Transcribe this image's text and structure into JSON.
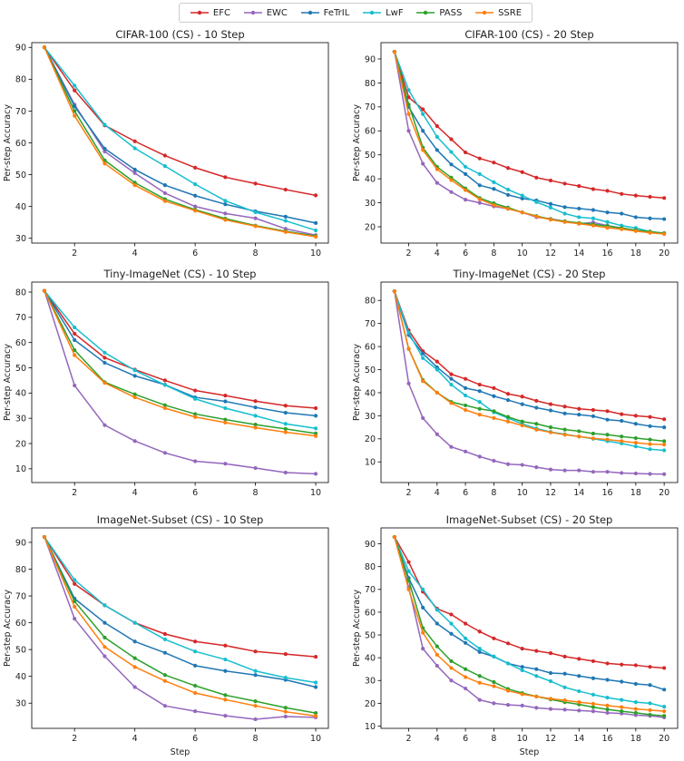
{
  "legend": {
    "items": [
      {
        "name": "EFC",
        "color": "#d62728"
      },
      {
        "name": "EWC",
        "color": "#9467bd"
      },
      {
        "name": "FeTrIL",
        "color": "#1f77b4"
      },
      {
        "name": "LwF",
        "color": "#17becf"
      },
      {
        "name": "PASS",
        "color": "#2ca02c"
      },
      {
        "name": "SSRE",
        "color": "#ff7f0e"
      }
    ]
  },
  "chart_data": [
    {
      "type": "line",
      "title": "CIFAR-100 (CS) - 10 Step",
      "xlabel": "",
      "ylabel": "Per-step Accuracy",
      "xlim": [
        0.58,
        10.42
      ],
      "ylim": [
        28.5,
        91.5
      ],
      "xticks": [
        2,
        4,
        6,
        8,
        10
      ],
      "yticks": [
        30,
        40,
        50,
        60,
        70,
        80,
        90
      ],
      "x": [
        1,
        2,
        3,
        4,
        5,
        6,
        7,
        8,
        9,
        10
      ],
      "series": [
        {
          "name": "EFC",
          "values": [
            90,
            76.5,
            65.5,
            60.5,
            56,
            52.2,
            49.2,
            47.2,
            45.3,
            43.5
          ]
        },
        {
          "name": "EWC",
          "values": [
            90,
            72,
            57.3,
            50.5,
            44.2,
            40,
            37.8,
            36.3,
            33,
            31
          ]
        },
        {
          "name": "FeTrIL",
          "values": [
            90,
            71.5,
            58.2,
            51.6,
            46.7,
            43.4,
            40.7,
            38.5,
            36.8,
            34.8
          ]
        },
        {
          "name": "LwF",
          "values": [
            90,
            78,
            65.7,
            58.3,
            52.7,
            47,
            41.8,
            38.2,
            35.5,
            32.5
          ]
        },
        {
          "name": "PASS",
          "values": [
            90,
            70,
            54.5,
            47.5,
            42.3,
            39,
            36.2,
            34,
            32.2,
            30.7
          ]
        },
        {
          "name": "SSRE",
          "values": [
            90,
            68.5,
            53.5,
            46.7,
            41.7,
            38.7,
            35.8,
            33.8,
            32,
            30.5
          ]
        }
      ]
    },
    {
      "type": "line",
      "title": "CIFAR-100 (CS) - 20 Step",
      "xlabel": "",
      "ylabel": "Per-step Accuracy",
      "xlim": [
        0.05,
        20.95
      ],
      "ylim": [
        13.2,
        96.8
      ],
      "xticks": [
        2,
        4,
        6,
        8,
        10,
        12,
        14,
        16,
        18,
        20
      ],
      "yticks": [
        20,
        30,
        40,
        50,
        60,
        70,
        80,
        90
      ],
      "x": [
        1,
        2,
        3,
        4,
        5,
        6,
        7,
        8,
        9,
        10,
        11,
        12,
        13,
        14,
        15,
        16,
        17,
        18,
        19,
        20
      ],
      "series": [
        {
          "name": "EFC",
          "values": [
            93,
            74,
            69,
            62,
            56.5,
            51,
            48.5,
            46.8,
            44.5,
            42.8,
            40.5,
            39.3,
            38,
            37,
            35.7,
            35,
            33.7,
            33,
            32.5,
            32
          ]
        },
        {
          "name": "EWC",
          "values": [
            93,
            60,
            46.3,
            38.3,
            34.5,
            31.3,
            30,
            28.5,
            27.5,
            26,
            24,
            23.3,
            22.3,
            21.3,
            21.8,
            20.5,
            19.5,
            18.5,
            17.8,
            17.3
          ]
        },
        {
          "name": "FeTrIL",
          "values": [
            93,
            70,
            60,
            52,
            46,
            42,
            37.3,
            35.8,
            33.3,
            31.8,
            31,
            29.5,
            28.2,
            27.6,
            27,
            26,
            25.5,
            24,
            23.5,
            23.2
          ]
        },
        {
          "name": "LwF",
          "values": [
            93,
            77,
            67,
            57.5,
            51.2,
            45,
            42,
            38.6,
            35.5,
            33,
            30.3,
            28,
            25.5,
            24,
            23.5,
            22,
            20.5,
            19.5,
            18,
            17.3
          ]
        },
        {
          "name": "PASS",
          "values": [
            93,
            71,
            53,
            45,
            40.5,
            36,
            32,
            29.8,
            28,
            26,
            24.5,
            23.2,
            22.3,
            21.6,
            21,
            20.3,
            19.5,
            18.6,
            18,
            17.3
          ]
        },
        {
          "name": "SSRE",
          "values": [
            93,
            67,
            52,
            44,
            39.5,
            35.3,
            31.5,
            29,
            27.5,
            26,
            24.3,
            23,
            22,
            21.3,
            20.5,
            19.6,
            19,
            18.2,
            17.5,
            17
          ]
        }
      ]
    },
    {
      "type": "line",
      "title": "Tiny-ImageNet (CS) - 10 Step",
      "xlabel": "",
      "ylabel": "Per-step Accuracy",
      "xlim": [
        0.58,
        10.42
      ],
      "ylim": [
        4.55,
        83.95
      ],
      "xticks": [
        2,
        4,
        6,
        8,
        10
      ],
      "yticks": [
        10,
        20,
        30,
        40,
        50,
        60,
        70,
        80
      ],
      "x": [
        1,
        2,
        3,
        4,
        5,
        6,
        7,
        8,
        9,
        10
      ],
      "series": [
        {
          "name": "EFC",
          "values": [
            80.5,
            63.5,
            54,
            49.3,
            45,
            41,
            39,
            36.8,
            35,
            34
          ]
        },
        {
          "name": "EWC",
          "values": [
            80.5,
            43,
            27.3,
            21,
            16.3,
            13,
            12,
            10.3,
            8.5,
            8
          ]
        },
        {
          "name": "FeTrIL",
          "values": [
            80.5,
            61,
            52,
            46.8,
            43.3,
            38.3,
            36.7,
            34.3,
            32.2,
            31
          ]
        },
        {
          "name": "LwF",
          "values": [
            80.5,
            66,
            56,
            49,
            43.2,
            37.7,
            34,
            31,
            27.8,
            26
          ]
        },
        {
          "name": "PASS",
          "values": [
            80.5,
            57,
            44.3,
            39.5,
            35.2,
            31.7,
            29.5,
            27.5,
            25.8,
            24
          ]
        },
        {
          "name": "SSRE",
          "values": [
            80.5,
            55,
            44,
            38.3,
            34,
            30.5,
            28.3,
            26.3,
            24.5,
            23
          ]
        }
      ]
    },
    {
      "type": "line",
      "title": "Tiny-ImageNet (CS) - 20 Step",
      "xlabel": "",
      "ylabel": "Per-step Accuracy",
      "xlim": [
        0.05,
        20.95
      ],
      "ylim": [
        1.05,
        87.95
      ],
      "xticks": [
        2,
        4,
        6,
        8,
        10,
        12,
        14,
        16,
        18,
        20
      ],
      "yticks": [
        10,
        20,
        30,
        40,
        50,
        60,
        70,
        80
      ],
      "x": [
        1,
        2,
        3,
        4,
        5,
        6,
        7,
        8,
        9,
        10,
        11,
        12,
        13,
        14,
        15,
        16,
        17,
        18,
        19,
        20
      ],
      "series": [
        {
          "name": "EFC",
          "values": [
            84,
            67,
            58,
            53.5,
            48,
            46,
            43.5,
            42,
            39.5,
            38.3,
            36.5,
            35,
            34,
            33,
            32.5,
            32,
            30.7,
            30,
            29.5,
            28.5
          ]
        },
        {
          "name": "EWC",
          "values": [
            84,
            44,
            29,
            22,
            16.5,
            14.5,
            12.3,
            10.5,
            9,
            8.7,
            7.7,
            6.7,
            6.3,
            6.3,
            5.7,
            5.7,
            5.2,
            5,
            4.8,
            4.7
          ]
        },
        {
          "name": "FeTrIL",
          "values": [
            84,
            65,
            57,
            51,
            46,
            42,
            40.7,
            38.5,
            36.8,
            35,
            33.5,
            32.3,
            31,
            30.5,
            29.8,
            28.3,
            27.8,
            26.5,
            25.5,
            25
          ]
        },
        {
          "name": "LwF",
          "values": [
            84,
            66,
            55,
            50,
            43.5,
            38.8,
            36,
            31.5,
            29,
            26.5,
            24.5,
            23,
            22,
            21,
            20,
            19,
            18,
            16.7,
            15.5,
            15
          ]
        },
        {
          "name": "PASS",
          "values": [
            84,
            59,
            45.5,
            40,
            36,
            34.5,
            33,
            32,
            29.5,
            27.5,
            26.5,
            25,
            24,
            23.3,
            22.3,
            21.8,
            21,
            20.3,
            19.7,
            19
          ]
        },
        {
          "name": "SSRE",
          "values": [
            84,
            59,
            45,
            40,
            35.5,
            32.5,
            30.5,
            29,
            27.5,
            25.8,
            24,
            22.8,
            21.8,
            21,
            20.2,
            19.7,
            19,
            18.3,
            17.7,
            17.5
          ]
        }
      ]
    },
    {
      "type": "line",
      "title": "ImageNet-Subset (CS) - 10 Step",
      "xlabel": "Step",
      "ylabel": "Per-step Accuracy",
      "xlim": [
        0.58,
        10.42
      ],
      "ylim": [
        20.6,
        95.4
      ],
      "xticks": [
        2,
        4,
        6,
        8,
        10
      ],
      "yticks": [
        30,
        40,
        50,
        60,
        70,
        80,
        90
      ],
      "x": [
        1,
        2,
        3,
        4,
        5,
        6,
        7,
        8,
        9,
        10
      ],
      "series": [
        {
          "name": "EFC",
          "values": [
            92,
            74.5,
            66.5,
            60,
            55.8,
            53,
            51.5,
            49.3,
            48.3,
            47.3
          ]
        },
        {
          "name": "EWC",
          "values": [
            92,
            61.5,
            47.5,
            36,
            29,
            27,
            25.3,
            24,
            25,
            24.7
          ]
        },
        {
          "name": "FeTrIL",
          "values": [
            92,
            69,
            60,
            53,
            48.8,
            44,
            42,
            40.5,
            38.7,
            36
          ]
        },
        {
          "name": "LwF",
          "values": [
            92,
            76,
            66.5,
            60,
            53.8,
            49.3,
            46.3,
            42,
            39.5,
            37.7
          ]
        },
        {
          "name": "PASS",
          "values": [
            92,
            68,
            54.5,
            46.8,
            40.5,
            36.5,
            33,
            30.7,
            28.3,
            26.3
          ]
        },
        {
          "name": "SSRE",
          "values": [
            92,
            66,
            51,
            43.5,
            38.3,
            33.8,
            31.3,
            29,
            26.8,
            25.2
          ]
        }
      ]
    },
    {
      "type": "line",
      "title": "ImageNet-Subset (CS) - 20 Step",
      "xlabel": "Step",
      "ylabel": "Per-step Accuracy",
      "xlim": [
        0.05,
        20.95
      ],
      "ylim": [
        9.0,
        97.0
      ],
      "xticks": [
        2,
        4,
        6,
        8,
        10,
        12,
        14,
        16,
        18,
        20
      ],
      "yticks": [
        10,
        20,
        30,
        40,
        50,
        60,
        70,
        80,
        90
      ],
      "x": [
        1,
        2,
        3,
        4,
        5,
        6,
        7,
        8,
        9,
        10,
        11,
        12,
        13,
        14,
        15,
        16,
        17,
        18,
        19,
        20
      ],
      "series": [
        {
          "name": "EFC",
          "values": [
            93,
            82,
            69,
            61.5,
            59,
            55,
            51.5,
            48.5,
            46.3,
            44,
            43,
            42,
            40.5,
            39.5,
            38.5,
            37.5,
            37,
            36.7,
            36,
            35.5
          ]
        },
        {
          "name": "EWC",
          "values": [
            93,
            71,
            44,
            36.5,
            30,
            26.5,
            21.5,
            20,
            19.3,
            19,
            18,
            17.5,
            17.2,
            16.8,
            16.5,
            15.8,
            15.5,
            14.8,
            14.5,
            13.8
          ]
        },
        {
          "name": "FeTrIL",
          "values": [
            93,
            75,
            62,
            55,
            50.5,
            46.5,
            42.5,
            40.5,
            37.5,
            36,
            35,
            33.3,
            33,
            32,
            31,
            30.3,
            29.5,
            28.5,
            28,
            26
          ]
        },
        {
          "name": "LwF",
          "values": [
            93,
            78,
            70,
            61,
            55,
            48.5,
            44,
            40.5,
            37.5,
            34.5,
            32,
            29.7,
            27,
            25.3,
            23.8,
            22.5,
            21.5,
            20.5,
            20,
            18.5
          ]
        },
        {
          "name": "PASS",
          "values": [
            93,
            74,
            53,
            45,
            38.5,
            35,
            32,
            29.3,
            26.3,
            24.5,
            23,
            21.7,
            20.5,
            19.5,
            18.3,
            17.3,
            16.5,
            15.8,
            15,
            14.5
          ]
        },
        {
          "name": "SSRE",
          "values": [
            93,
            70,
            51,
            41.3,
            35.5,
            31.5,
            29,
            27.5,
            25.5,
            24,
            23,
            22,
            21.3,
            20.5,
            19.8,
            19,
            18.3,
            17.5,
            17,
            16.5
          ]
        }
      ]
    }
  ]
}
